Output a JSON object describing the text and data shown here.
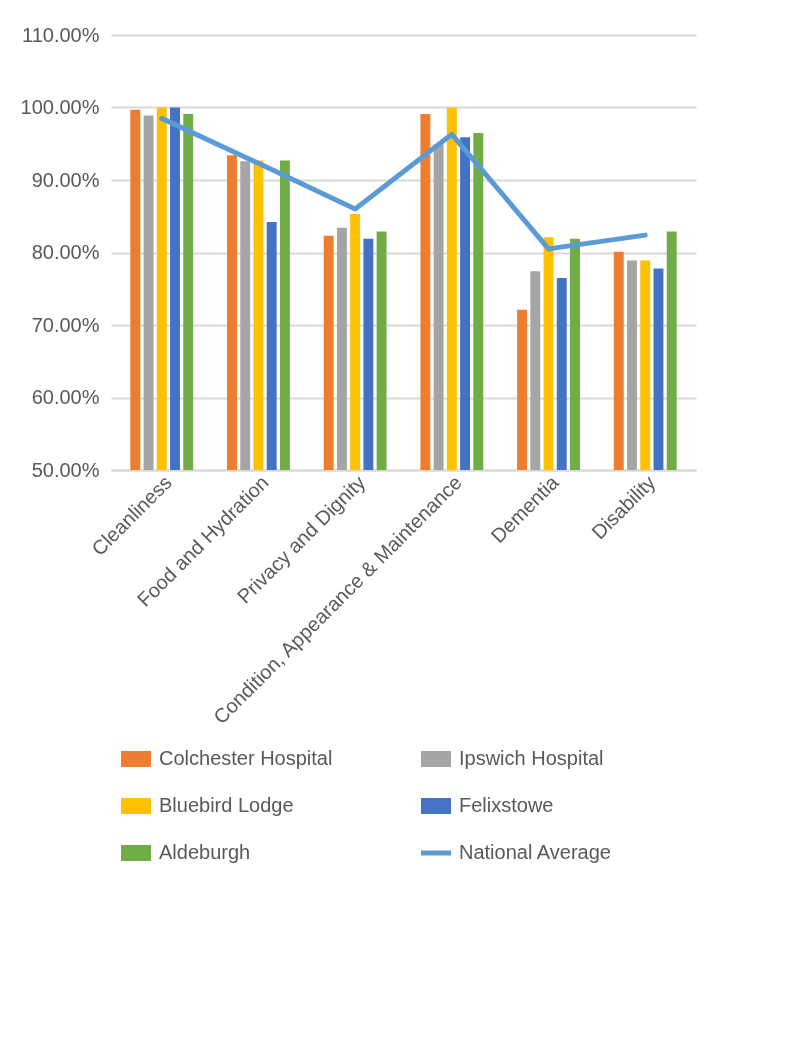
{
  "chart_data": {
    "type": "bar",
    "categories": [
      "Cleanliness",
      "Food and Hydration",
      "Privacy and Dignity",
      "Condition, Appearance & Maintenance",
      "Dementia",
      "Disability"
    ],
    "series": [
      {
        "name": "Colchester Hospital",
        "color": "#ed7d31",
        "values": [
          99.7,
          93.4,
          82.3,
          99.1,
          72.1,
          80.1
        ]
      },
      {
        "name": "Ipswich Hospital",
        "color": "#a5a5a5",
        "values": [
          98.9,
          92.6,
          83.4,
          94.9,
          77.4,
          78.9
        ]
      },
      {
        "name": "Bluebird Lodge",
        "color": "#ffc000",
        "values": [
          100,
          92.7,
          85.3,
          100,
          82.1,
          78.9
        ]
      },
      {
        "name": "Felixstowe",
        "color": "#4472c4",
        "values": [
          100,
          84.2,
          81.9,
          95.9,
          76.5,
          77.8
        ]
      },
      {
        "name": "Aldeburgh",
        "color": "#70ad47",
        "values": [
          99.1,
          92.7,
          82.9,
          96.5,
          81.9,
          82.9
        ]
      },
      {
        "name": "National Average",
        "color": "#5b9bd5",
        "type": "line",
        "values": [
          98.5,
          92.3,
          86.0,
          96.3,
          80.5,
          82.4
        ]
      }
    ],
    "ylim": [
      50,
      110
    ],
    "yticks": [
      {
        "value": 50,
        "label": "50.00%"
      },
      {
        "value": 60,
        "label": "60.00%"
      },
      {
        "value": 70,
        "label": "70.00%"
      },
      {
        "value": 80,
        "label": "80.00%"
      },
      {
        "value": 90,
        "label": "90.00%"
      },
      {
        "value": 100,
        "label": "100.00%"
      },
      {
        "value": 110,
        "label": "110.00%"
      }
    ],
    "grid": "y",
    "legend": "bottom",
    "marker": "none"
  }
}
